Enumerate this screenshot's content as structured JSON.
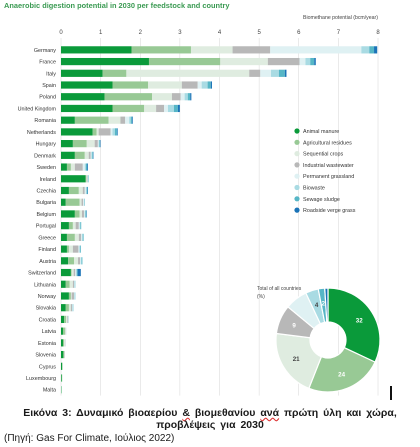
{
  "chart_data": [
    {
      "type": "bar",
      "stacked": true,
      "orientation": "horizontal",
      "title": "Anaerobic digestion potential in 2030 per feedstock and country",
      "axis_title": "Biomethane potential (bcm/year)",
      "xlim": [
        0,
        8
      ],
      "x_ticks": [
        0,
        1,
        2,
        3,
        4,
        5,
        6,
        7,
        8
      ],
      "grid": true,
      "legend_position": "right",
      "colors": {
        "Animal manure": "#0a9a3a",
        "Agricultural residues": "#98c995",
        "Sequential crops": "#dfece0",
        "Industrial wastewater": "#b8b8b8",
        "Permanent grassland": "#dff1f3",
        "Biowaste": "#a9dbe3",
        "Sewage sludge": "#56b6c6",
        "Roadside verge grass": "#1a73b7"
      },
      "series_names": [
        "Animal manure",
        "Agricultural residues",
        "Sequential crops",
        "Industrial wastewater",
        "Permanent grassland",
        "Biowaste",
        "Sewage sludge",
        "Roadside verge grass"
      ],
      "categories": [
        "Germany",
        "France",
        "Italy",
        "Spain",
        "Poland",
        "United Kingdom",
        "Romania",
        "Netherlands",
        "Hungary",
        "Denmark",
        "Sweden",
        "Ireland",
        "Czechia",
        "Bulgaria",
        "Belgium",
        "Portugal",
        "Greece",
        "Finland",
        "Austria",
        "Switzerland",
        "Lithuania",
        "Norway",
        "Slovakia",
        "Croatia",
        "Latvia",
        "Estonia",
        "Slovenia",
        "Cyprus",
        "Luxembourg",
        "Malta"
      ],
      "values": [
        [
          1.78,
          1.5,
          1.05,
          0.95,
          2.3,
          0.2,
          0.12,
          0.08
        ],
        [
          2.22,
          1.8,
          1.2,
          0.8,
          0.15,
          0.12,
          0.1,
          0.04
        ],
        [
          1.05,
          0.6,
          3.1,
          0.28,
          0.27,
          0.2,
          0.15,
          0.04
        ],
        [
          1.3,
          0.9,
          0.85,
          0.4,
          0.1,
          0.15,
          0.08,
          0.03
        ],
        [
          1.1,
          1.2,
          0.5,
          0.22,
          0.1,
          0.08,
          0.06,
          0.03
        ],
        [
          1.3,
          0.8,
          0.3,
          0.2,
          0.1,
          0.15,
          0.1,
          0.05
        ],
        [
          0.35,
          0.85,
          0.3,
          0.12,
          0.1,
          0.04,
          0.03,
          0.02
        ],
        [
          0.8,
          0.1,
          0.05,
          0.3,
          0.05,
          0.06,
          0.05,
          0.02
        ],
        [
          0.3,
          0.35,
          0.2,
          0.08,
          0.02,
          0.02,
          0.02,
          0.01
        ],
        [
          0.35,
          0.25,
          0.1,
          0.05,
          0.02,
          0.02,
          0.02,
          0.01
        ],
        [
          0.15,
          0.1,
          0.1,
          0.2,
          0.05,
          0.03,
          0.03,
          0.02
        ],
        [
          0.62,
          0.02,
          0.01,
          0.02,
          0.01,
          0.01,
          0.01,
          0.0
        ],
        [
          0.2,
          0.25,
          0.1,
          0.05,
          0.03,
          0.02,
          0.02,
          0.01
        ],
        [
          0.12,
          0.35,
          0.05,
          0.04,
          0.02,
          0.01,
          0.01,
          0.0
        ],
        [
          0.35,
          0.12,
          0.06,
          0.05,
          0.02,
          0.02,
          0.02,
          0.01
        ],
        [
          0.2,
          0.1,
          0.07,
          0.08,
          0.02,
          0.02,
          0.02,
          0.0
        ],
        [
          0.15,
          0.2,
          0.1,
          0.06,
          0.02,
          0.02,
          0.02,
          0.0
        ],
        [
          0.15,
          0.05,
          0.1,
          0.14,
          0.02,
          0.02,
          0.02,
          0.0
        ],
        [
          0.18,
          0.15,
          0.1,
          0.05,
          0.02,
          0.02,
          0.02,
          0.0
        ],
        [
          0.25,
          0.02,
          0.05,
          0.04,
          0.02,
          0.02,
          0.02,
          0.08
        ],
        [
          0.12,
          0.1,
          0.08,
          0.03,
          0.01,
          0.01,
          0.01,
          0.0
        ],
        [
          0.2,
          0.05,
          0.02,
          0.06,
          0.01,
          0.01,
          0.01,
          0.0
        ],
        [
          0.12,
          0.08,
          0.05,
          0.03,
          0.01,
          0.01,
          0.01,
          0.0
        ],
        [
          0.08,
          0.05,
          0.03,
          0.02,
          0.01,
          0.01,
          0.0,
          0.0
        ],
        [
          0.05,
          0.05,
          0.02,
          0.01,
          0.01,
          0.0,
          0.0,
          0.0
        ],
        [
          0.05,
          0.03,
          0.02,
          0.01,
          0.01,
          0.0,
          0.0,
          0.0
        ],
        [
          0.06,
          0.02,
          0.01,
          0.01,
          0.0,
          0.0,
          0.0,
          0.0
        ],
        [
          0.03,
          0.01,
          0.0,
          0.0,
          0.0,
          0.0,
          0.0,
          0.0
        ],
        [
          0.02,
          0.01,
          0.0,
          0.0,
          0.0,
          0.0,
          0.0,
          0.0
        ],
        [
          0.01,
          0.0,
          0.0,
          0.0,
          0.0,
          0.0,
          0.0,
          0.0
        ]
      ]
    },
    {
      "type": "pie",
      "donut": true,
      "title": "Total of all countries (%)",
      "labels": [
        "Animal manure",
        "Agricultural residues",
        "Sequential crops",
        "Industrial wastewater",
        "Permanent grassland",
        "Biowaste",
        "Sewage sludge",
        "Roadside verge grass"
      ],
      "values": [
        32,
        24,
        21,
        9,
        7,
        4,
        2,
        1
      ],
      "value_labels": [
        "32",
        "24",
        "21",
        "9",
        "",
        "4",
        "2",
        ""
      ]
    }
  ],
  "caption": {
    "title_line1_a": "Εικόνα 3: Δυναμικό βιοαερίου ",
    "title_line1_b": "&",
    "title_line1_c": " βιομεθανίου ",
    "title_line1_d": "ανά",
    "title_line1_e": " πρώτη ύλη και χώρα,",
    "title_line2": "προβλέψεις για 2030",
    "source": "(Πηγή: Gas For Climate, Ιούλιος 2022)"
  }
}
